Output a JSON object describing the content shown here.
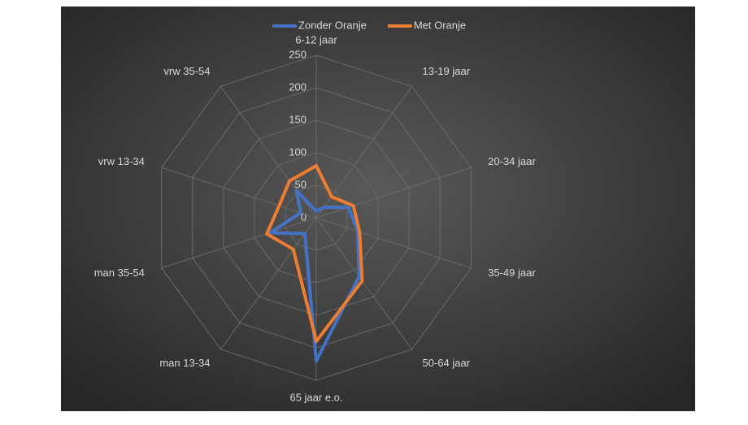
{
  "chart_data": {
    "type": "radar",
    "categories": [
      "6-12 jaar",
      "13-19 jaar",
      "20-34 jaar",
      "35-49 jaar",
      "50-64 jaar",
      "65 jaar e.o.",
      "man 13-34",
      "man 35-54",
      "vrw 13-34",
      "vrw 35-54"
    ],
    "series": [
      {
        "name": "Zonder Oranje",
        "color": "#4472c4",
        "values": [
          10,
          20,
          52,
          67,
          112,
          220,
          30,
          75,
          25,
          52
        ]
      },
      {
        "name": "Met Oranje",
        "color": "#ed7d31",
        "values": [
          80,
          40,
          60,
          70,
          120,
          190,
          60,
          80,
          60,
          70
        ]
      }
    ],
    "ylim": [
      0,
      250
    ],
    "yticks": [
      0,
      50,
      100,
      150,
      200,
      250
    ],
    "grid": true
  }
}
